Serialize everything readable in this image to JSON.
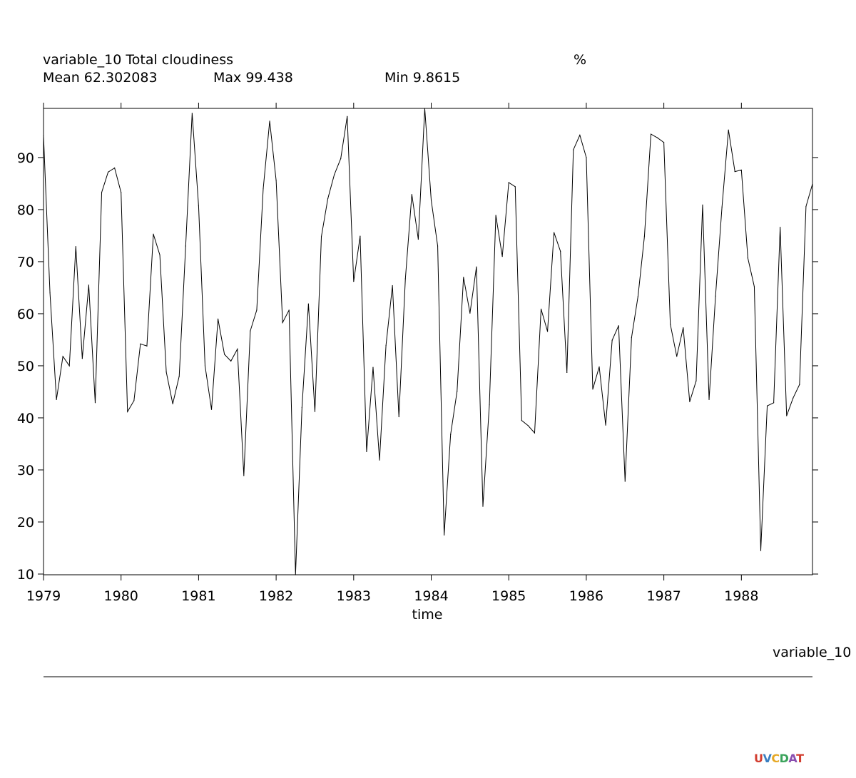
{
  "header": {
    "title": "variable_10 Total cloudiness",
    "units": "%",
    "mean_label": "Mean 62.302083",
    "max_label": "Max 99.438",
    "min_label": "Min 9.8615"
  },
  "legend_label": "variable_10",
  "logo": {
    "text": "UV-CDAT",
    "colors": [
      "#d23c2e",
      "#3a7fc1",
      "#e6a824",
      "#3aa35b",
      "#8a4fb0"
    ]
  },
  "chart_data": {
    "type": "line",
    "title": "variable_10 Total cloudiness",
    "units": "%",
    "xlabel": "time",
    "ylabel": "",
    "x_start": 1979.0,
    "x_step": 0.0833333,
    "xlim": [
      1979,
      1988.917
    ],
    "ylim": [
      9.8615,
      99.438
    ],
    "xticks": [
      1979,
      1980,
      1981,
      1982,
      1983,
      1984,
      1985,
      1986,
      1987,
      1988
    ],
    "yticks": [
      10,
      20,
      30,
      40,
      50,
      60,
      70,
      80,
      90
    ],
    "line_color": "#000000",
    "grid": false,
    "series": [
      {
        "values": [
          94.2,
          64.0,
          43.5,
          51.8,
          50.0,
          72.9,
          51.4,
          65.5,
          42.9,
          83.3,
          87.2,
          88.0,
          83.3,
          41.2,
          43.3,
          54.2,
          53.8,
          75.3,
          71.3,
          48.8,
          42.7,
          48.0,
          73.0,
          98.5,
          80.7,
          50.0,
          41.6,
          59.0,
          52.2,
          50.9,
          53.2,
          28.9,
          56.7,
          60.7,
          84.0,
          97.0,
          85.6,
          58.3,
          60.7,
          9.8615,
          42.0,
          61.9,
          41.2,
          74.8,
          82.1,
          86.7,
          89.8,
          97.9,
          66.2,
          74.9,
          33.5,
          49.7,
          31.9,
          53.9,
          65.4,
          40.2,
          66.7,
          82.9,
          74.3,
          99.438,
          81.8,
          73.0,
          17.5,
          36.8,
          45.1,
          67.0,
          60.1,
          69.0,
          23.0,
          42.5,
          78.9,
          71.0,
          85.2,
          84.4,
          39.5,
          38.5,
          37.1,
          60.9,
          56.6,
          75.6,
          72.0,
          48.7,
          91.5,
          94.3,
          90.0,
          45.5,
          49.8,
          38.6,
          54.9,
          57.7,
          27.8,
          55.4,
          63.3,
          74.9,
          94.5,
          93.8,
          92.9,
          58.0,
          51.8,
          57.3,
          43.1,
          47.1,
          80.9,
          43.5,
          63.4,
          80.5,
          95.3,
          87.3,
          87.6,
          70.7,
          65.2,
          14.5,
          42.3,
          42.9,
          76.6,
          40.4,
          43.8,
          46.4,
          80.6,
          84.9
        ]
      }
    ]
  }
}
